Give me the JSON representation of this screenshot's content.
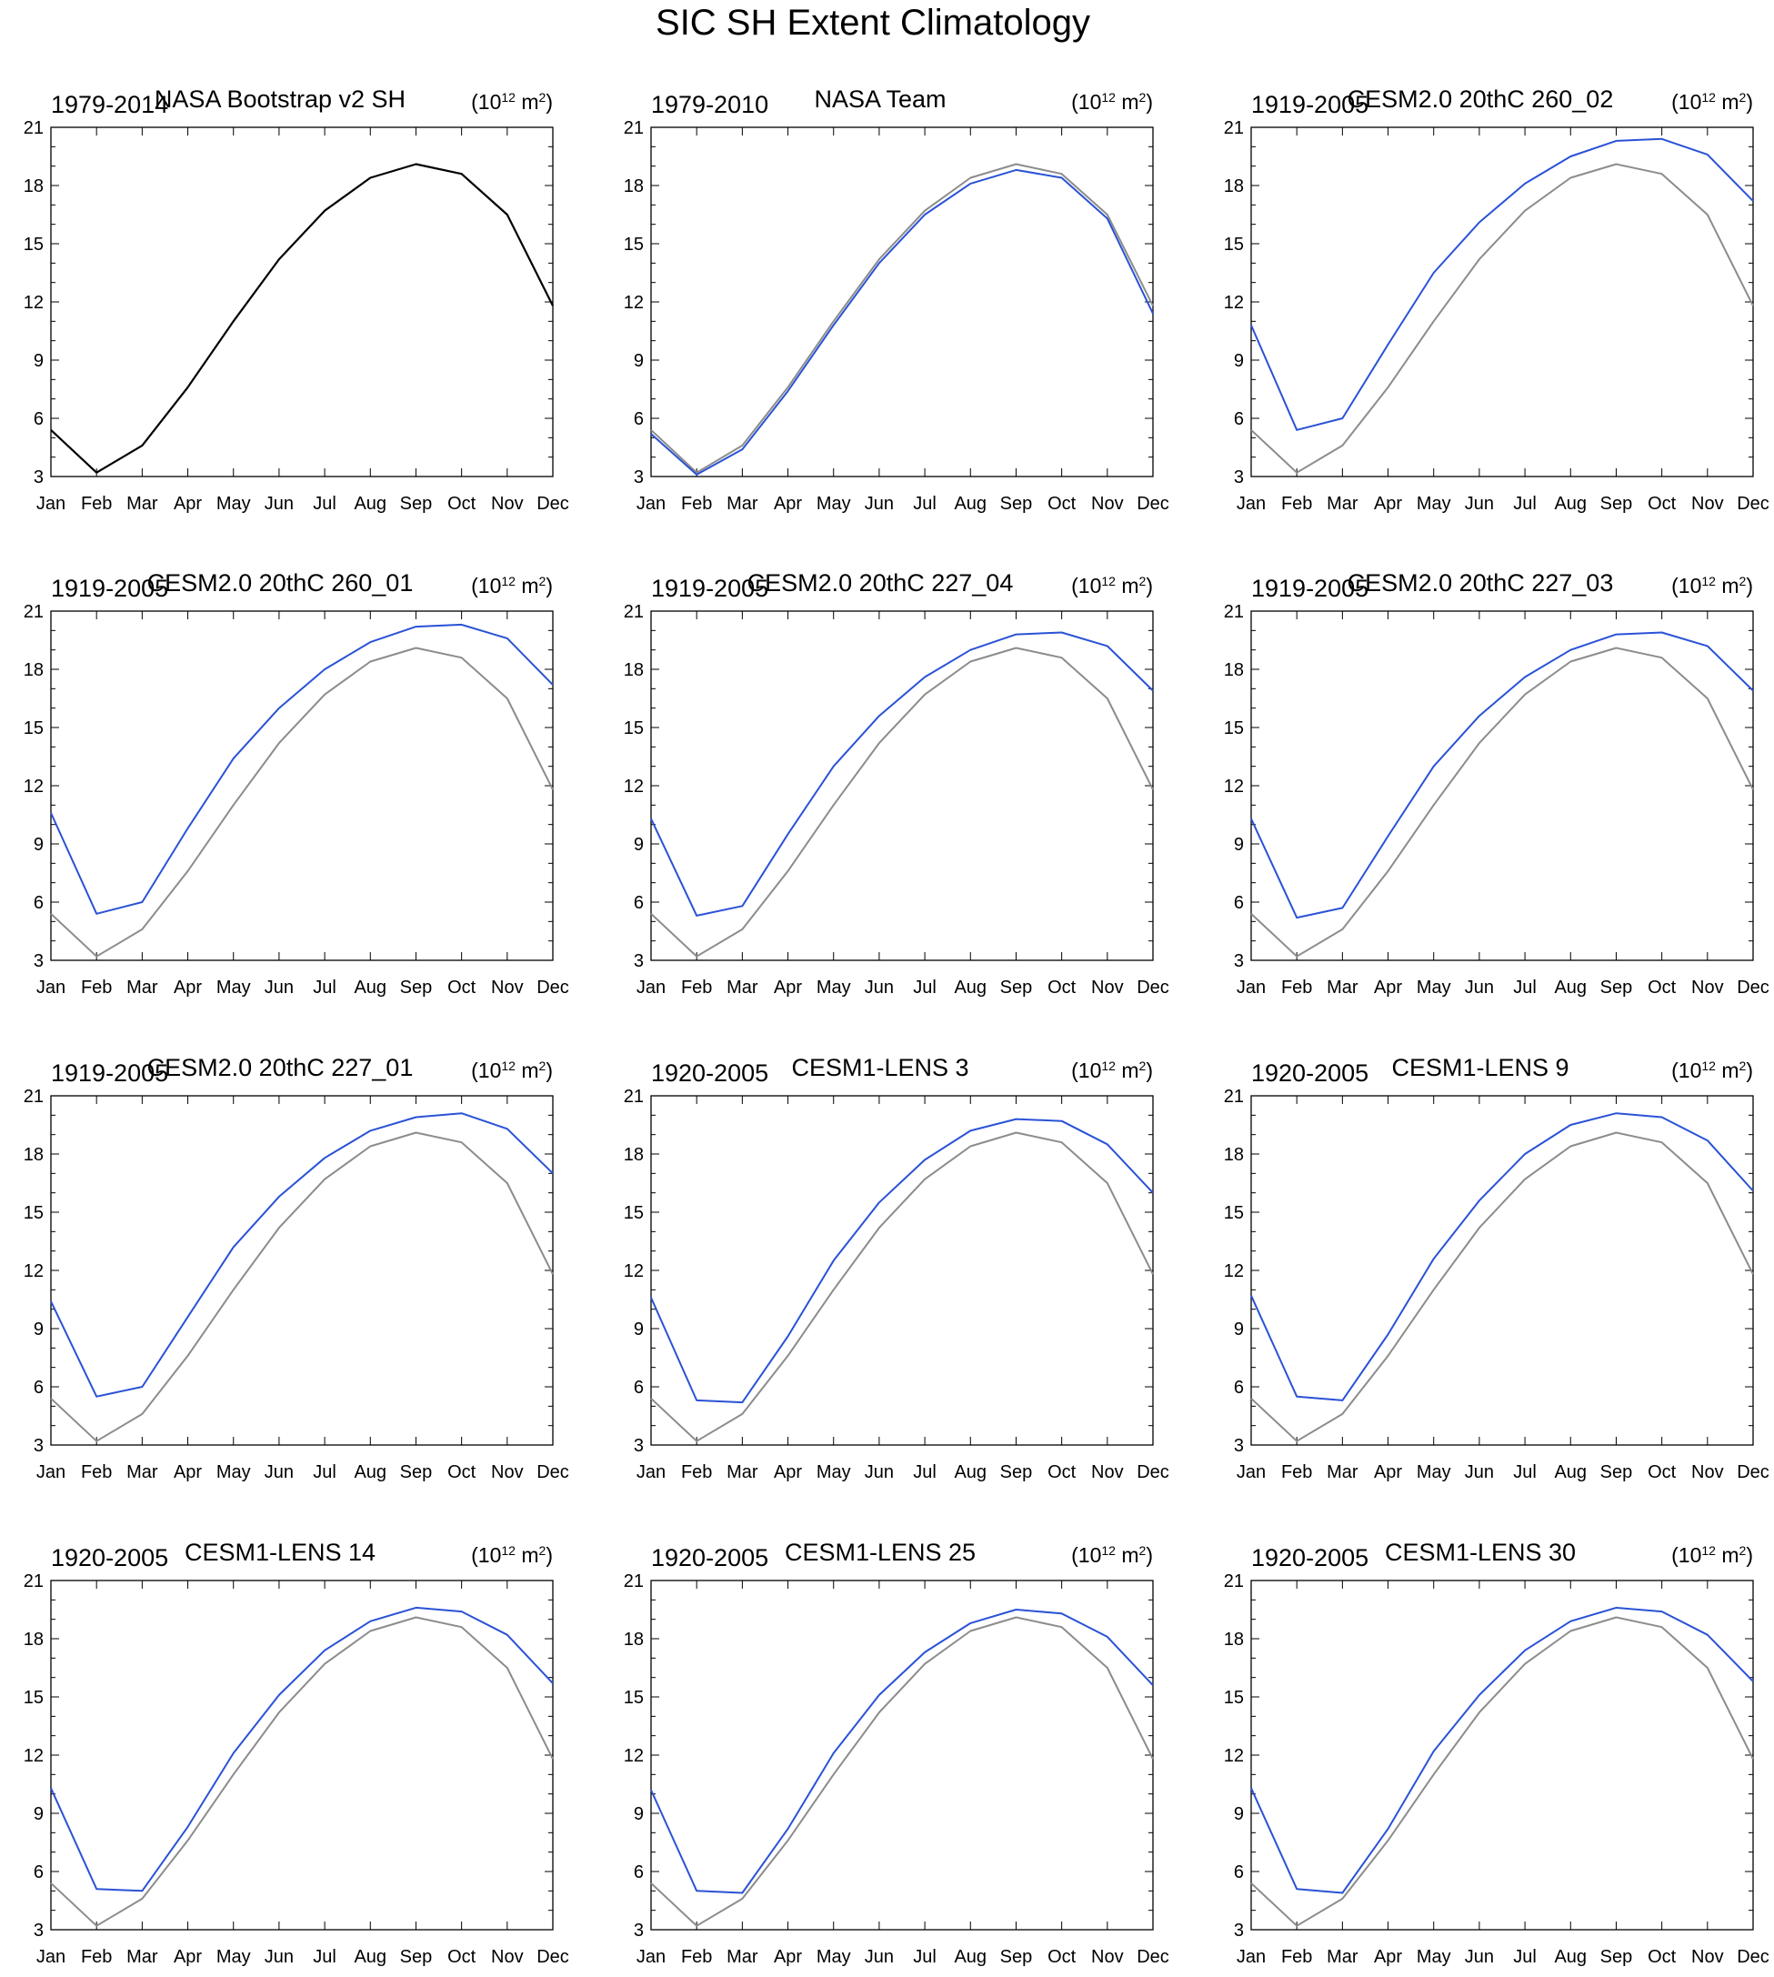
{
  "figure": {
    "title": "SIC SH Extent Climatology"
  },
  "colors": {
    "observed": "#000000",
    "reference": "#8c8c8c",
    "model": "#2a52d6",
    "axis": "#000000"
  },
  "chart_data": [
    {
      "type": "line",
      "period": "1979-2014",
      "title": "NASA Bootstrap v2 SH",
      "units": {
        "base": "(10",
        "sup": "12",
        "mid": " m",
        "sup2": "2",
        "end": ")"
      },
      "categories": [
        "Jan",
        "Feb",
        "Mar",
        "Apr",
        "May",
        "Jun",
        "Jul",
        "Aug",
        "Sep",
        "Oct",
        "Nov",
        "Dec"
      ],
      "ylim": [
        3,
        21
      ],
      "yticks": [
        3,
        6,
        9,
        12,
        15,
        18,
        21
      ],
      "series": [
        {
          "role": "observed",
          "values": [
            5.4,
            3.2,
            4.6,
            7.6,
            11.0,
            14.2,
            16.7,
            18.4,
            19.1,
            18.6,
            16.5,
            11.8
          ]
        }
      ]
    },
    {
      "type": "line",
      "period": "1979-2010",
      "title": "NASA Team",
      "units": {
        "base": "(10",
        "sup": "12",
        "mid": " m",
        "sup2": "2",
        "end": ")"
      },
      "categories": [
        "Jan",
        "Feb",
        "Mar",
        "Apr",
        "May",
        "Jun",
        "Jul",
        "Aug",
        "Sep",
        "Oct",
        "Nov",
        "Dec"
      ],
      "ylim": [
        3,
        21
      ],
      "yticks": [
        3,
        6,
        9,
        12,
        15,
        18,
        21
      ],
      "series": [
        {
          "role": "reference",
          "values": [
            5.4,
            3.2,
            4.6,
            7.6,
            11.0,
            14.2,
            16.7,
            18.4,
            19.1,
            18.6,
            16.5,
            11.8
          ]
        },
        {
          "role": "model",
          "values": [
            5.2,
            3.1,
            4.4,
            7.4,
            10.8,
            14.0,
            16.5,
            18.1,
            18.8,
            18.4,
            16.3,
            11.4
          ]
        }
      ]
    },
    {
      "type": "line",
      "period": "1919-2005",
      "title": "CESM2.0 20thC 260_02",
      "units": {
        "base": "(10",
        "sup": "12",
        "mid": " m",
        "sup2": "2",
        "end": ")"
      },
      "categories": [
        "Jan",
        "Feb",
        "Mar",
        "Apr",
        "May",
        "Jun",
        "Jul",
        "Aug",
        "Sep",
        "Oct",
        "Nov",
        "Dec"
      ],
      "ylim": [
        3,
        21
      ],
      "yticks": [
        3,
        6,
        9,
        12,
        15,
        18,
        21
      ],
      "series": [
        {
          "role": "reference",
          "values": [
            5.4,
            3.2,
            4.6,
            7.6,
            11.0,
            14.2,
            16.7,
            18.4,
            19.1,
            18.6,
            16.5,
            11.8
          ]
        },
        {
          "role": "model",
          "values": [
            10.8,
            5.4,
            6.0,
            9.8,
            13.5,
            16.1,
            18.1,
            19.5,
            20.3,
            20.4,
            19.6,
            17.2
          ]
        }
      ]
    },
    {
      "type": "line",
      "period": "1919-2005",
      "title": "CESM2.0 20thC 260_01",
      "units": {
        "base": "(10",
        "sup": "12",
        "mid": " m",
        "sup2": "2",
        "end": ")"
      },
      "categories": [
        "Jan",
        "Feb",
        "Mar",
        "Apr",
        "May",
        "Jun",
        "Jul",
        "Aug",
        "Sep",
        "Oct",
        "Nov",
        "Dec"
      ],
      "ylim": [
        3,
        21
      ],
      "yticks": [
        3,
        6,
        9,
        12,
        15,
        18,
        21
      ],
      "series": [
        {
          "role": "reference",
          "values": [
            5.4,
            3.2,
            4.6,
            7.6,
            11.0,
            14.2,
            16.7,
            18.4,
            19.1,
            18.6,
            16.5,
            11.8
          ]
        },
        {
          "role": "model",
          "values": [
            10.6,
            5.4,
            6.0,
            9.8,
            13.4,
            16.0,
            18.0,
            19.4,
            20.2,
            20.3,
            19.6,
            17.2
          ]
        }
      ]
    },
    {
      "type": "line",
      "period": "1919-2005",
      "title": "CESM2.0 20thC 227_04",
      "units": {
        "base": "(10",
        "sup": "12",
        "mid": " m",
        "sup2": "2",
        "end": ")"
      },
      "categories": [
        "Jan",
        "Feb",
        "Mar",
        "Apr",
        "May",
        "Jun",
        "Jul",
        "Aug",
        "Sep",
        "Oct",
        "Nov",
        "Dec"
      ],
      "ylim": [
        3,
        21
      ],
      "yticks": [
        3,
        6,
        9,
        12,
        15,
        18,
        21
      ],
      "series": [
        {
          "role": "reference",
          "values": [
            5.4,
            3.2,
            4.6,
            7.6,
            11.0,
            14.2,
            16.7,
            18.4,
            19.1,
            18.6,
            16.5,
            11.8
          ]
        },
        {
          "role": "model",
          "values": [
            10.3,
            5.3,
            5.8,
            9.5,
            13.0,
            15.6,
            17.6,
            19.0,
            19.8,
            19.9,
            19.2,
            16.9
          ]
        }
      ]
    },
    {
      "type": "line",
      "period": "1919-2005",
      "title": "CESM2.0 20thC 227_03",
      "units": {
        "base": "(10",
        "sup": "12",
        "mid": " m",
        "sup2": "2",
        "end": ")"
      },
      "categories": [
        "Jan",
        "Feb",
        "Mar",
        "Apr",
        "May",
        "Jun",
        "Jul",
        "Aug",
        "Sep",
        "Oct",
        "Nov",
        "Dec"
      ],
      "ylim": [
        3,
        21
      ],
      "yticks": [
        3,
        6,
        9,
        12,
        15,
        18,
        21
      ],
      "series": [
        {
          "role": "reference",
          "values": [
            5.4,
            3.2,
            4.6,
            7.6,
            11.0,
            14.2,
            16.7,
            18.4,
            19.1,
            18.6,
            16.5,
            11.8
          ]
        },
        {
          "role": "model",
          "values": [
            10.3,
            5.2,
            5.7,
            9.4,
            13.0,
            15.6,
            17.6,
            19.0,
            19.8,
            19.9,
            19.2,
            16.9
          ]
        }
      ]
    },
    {
      "type": "line",
      "period": "1919-2005",
      "title": "CESM2.0 20thC 227_01",
      "units": {
        "base": "(10",
        "sup": "12",
        "mid": " m",
        "sup2": "2",
        "end": ")"
      },
      "categories": [
        "Jan",
        "Feb",
        "Mar",
        "Apr",
        "May",
        "Jun",
        "Jul",
        "Aug",
        "Sep",
        "Oct",
        "Nov",
        "Dec"
      ],
      "ylim": [
        3,
        21
      ],
      "yticks": [
        3,
        6,
        9,
        12,
        15,
        18,
        21
      ],
      "series": [
        {
          "role": "reference",
          "values": [
            5.4,
            3.2,
            4.6,
            7.6,
            11.0,
            14.2,
            16.7,
            18.4,
            19.1,
            18.6,
            16.5,
            11.8
          ]
        },
        {
          "role": "model",
          "values": [
            10.4,
            5.5,
            6.0,
            9.6,
            13.2,
            15.8,
            17.8,
            19.2,
            19.9,
            20.1,
            19.3,
            17.0
          ]
        }
      ]
    },
    {
      "type": "line",
      "period": "1920-2005",
      "title": "CESM1-LENS 3",
      "units": {
        "base": "(10",
        "sup": "12",
        "mid": " m",
        "sup2": "2",
        "end": ")"
      },
      "categories": [
        "Jan",
        "Feb",
        "Mar",
        "Apr",
        "May",
        "Jun",
        "Jul",
        "Aug",
        "Sep",
        "Oct",
        "Nov",
        "Dec"
      ],
      "ylim": [
        3,
        21
      ],
      "yticks": [
        3,
        6,
        9,
        12,
        15,
        18,
        21
      ],
      "series": [
        {
          "role": "reference",
          "values": [
            5.4,
            3.2,
            4.6,
            7.6,
            11.0,
            14.2,
            16.7,
            18.4,
            19.1,
            18.6,
            16.5,
            11.8
          ]
        },
        {
          "role": "model",
          "values": [
            10.6,
            5.3,
            5.2,
            8.6,
            12.5,
            15.5,
            17.7,
            19.2,
            19.8,
            19.7,
            18.5,
            16.0
          ]
        }
      ]
    },
    {
      "type": "line",
      "period": "1920-2005",
      "title": "CESM1-LENS 9",
      "units": {
        "base": "(10",
        "sup": "12",
        "mid": " m",
        "sup2": "2",
        "end": ")"
      },
      "categories": [
        "Jan",
        "Feb",
        "Mar",
        "Apr",
        "May",
        "Jun",
        "Jul",
        "Aug",
        "Sep",
        "Oct",
        "Nov",
        "Dec"
      ],
      "ylim": [
        3,
        21
      ],
      "yticks": [
        3,
        6,
        9,
        12,
        15,
        18,
        21
      ],
      "series": [
        {
          "role": "reference",
          "values": [
            5.4,
            3.2,
            4.6,
            7.6,
            11.0,
            14.2,
            16.7,
            18.4,
            19.1,
            18.6,
            16.5,
            11.8
          ]
        },
        {
          "role": "model",
          "values": [
            10.7,
            5.5,
            5.3,
            8.7,
            12.6,
            15.6,
            18.0,
            19.5,
            20.1,
            19.9,
            18.7,
            16.1
          ]
        }
      ]
    },
    {
      "type": "line",
      "period": "1920-2005",
      "title": "CESM1-LENS 14",
      "units": {
        "base": "(10",
        "sup": "12",
        "mid": " m",
        "sup2": "2",
        "end": ")"
      },
      "categories": [
        "Jan",
        "Feb",
        "Mar",
        "Apr",
        "May",
        "Jun",
        "Jul",
        "Aug",
        "Sep",
        "Oct",
        "Nov",
        "Dec"
      ],
      "ylim": [
        3,
        21
      ],
      "yticks": [
        3,
        6,
        9,
        12,
        15,
        18,
        21
      ],
      "series": [
        {
          "role": "reference",
          "values": [
            5.4,
            3.2,
            4.6,
            7.6,
            11.0,
            14.2,
            16.7,
            18.4,
            19.1,
            18.6,
            16.5,
            11.8
          ]
        },
        {
          "role": "model",
          "values": [
            10.3,
            5.1,
            5.0,
            8.3,
            12.1,
            15.1,
            17.4,
            18.9,
            19.6,
            19.4,
            18.2,
            15.7
          ]
        }
      ]
    },
    {
      "type": "line",
      "period": "1920-2005",
      "title": "CESM1-LENS 25",
      "units": {
        "base": "(10",
        "sup": "12",
        "mid": " m",
        "sup2": "2",
        "end": ")"
      },
      "categories": [
        "Jan",
        "Feb",
        "Mar",
        "Apr",
        "May",
        "Jun",
        "Jul",
        "Aug",
        "Sep",
        "Oct",
        "Nov",
        "Dec"
      ],
      "ylim": [
        3,
        21
      ],
      "yticks": [
        3,
        6,
        9,
        12,
        15,
        18,
        21
      ],
      "series": [
        {
          "role": "reference",
          "values": [
            5.4,
            3.2,
            4.6,
            7.6,
            11.0,
            14.2,
            16.7,
            18.4,
            19.1,
            18.6,
            16.5,
            11.8
          ]
        },
        {
          "role": "model",
          "values": [
            10.2,
            5.0,
            4.9,
            8.2,
            12.1,
            15.1,
            17.3,
            18.8,
            19.5,
            19.3,
            18.1,
            15.6
          ]
        }
      ]
    },
    {
      "type": "line",
      "period": "1920-2005",
      "title": "CESM1-LENS 30",
      "units": {
        "base": "(10",
        "sup": "12",
        "mid": " m",
        "sup2": "2",
        "end": ")"
      },
      "categories": [
        "Jan",
        "Feb",
        "Mar",
        "Apr",
        "May",
        "Jun",
        "Jul",
        "Aug",
        "Sep",
        "Oct",
        "Nov",
        "Dec"
      ],
      "ylim": [
        3,
        21
      ],
      "yticks": [
        3,
        6,
        9,
        12,
        15,
        18,
        21
      ],
      "series": [
        {
          "role": "reference",
          "values": [
            5.4,
            3.2,
            4.6,
            7.6,
            11.0,
            14.2,
            16.7,
            18.4,
            19.1,
            18.6,
            16.5,
            11.8
          ]
        },
        {
          "role": "model",
          "values": [
            10.3,
            5.1,
            4.9,
            8.2,
            12.2,
            15.1,
            17.4,
            18.9,
            19.6,
            19.4,
            18.2,
            15.8
          ]
        }
      ]
    }
  ]
}
